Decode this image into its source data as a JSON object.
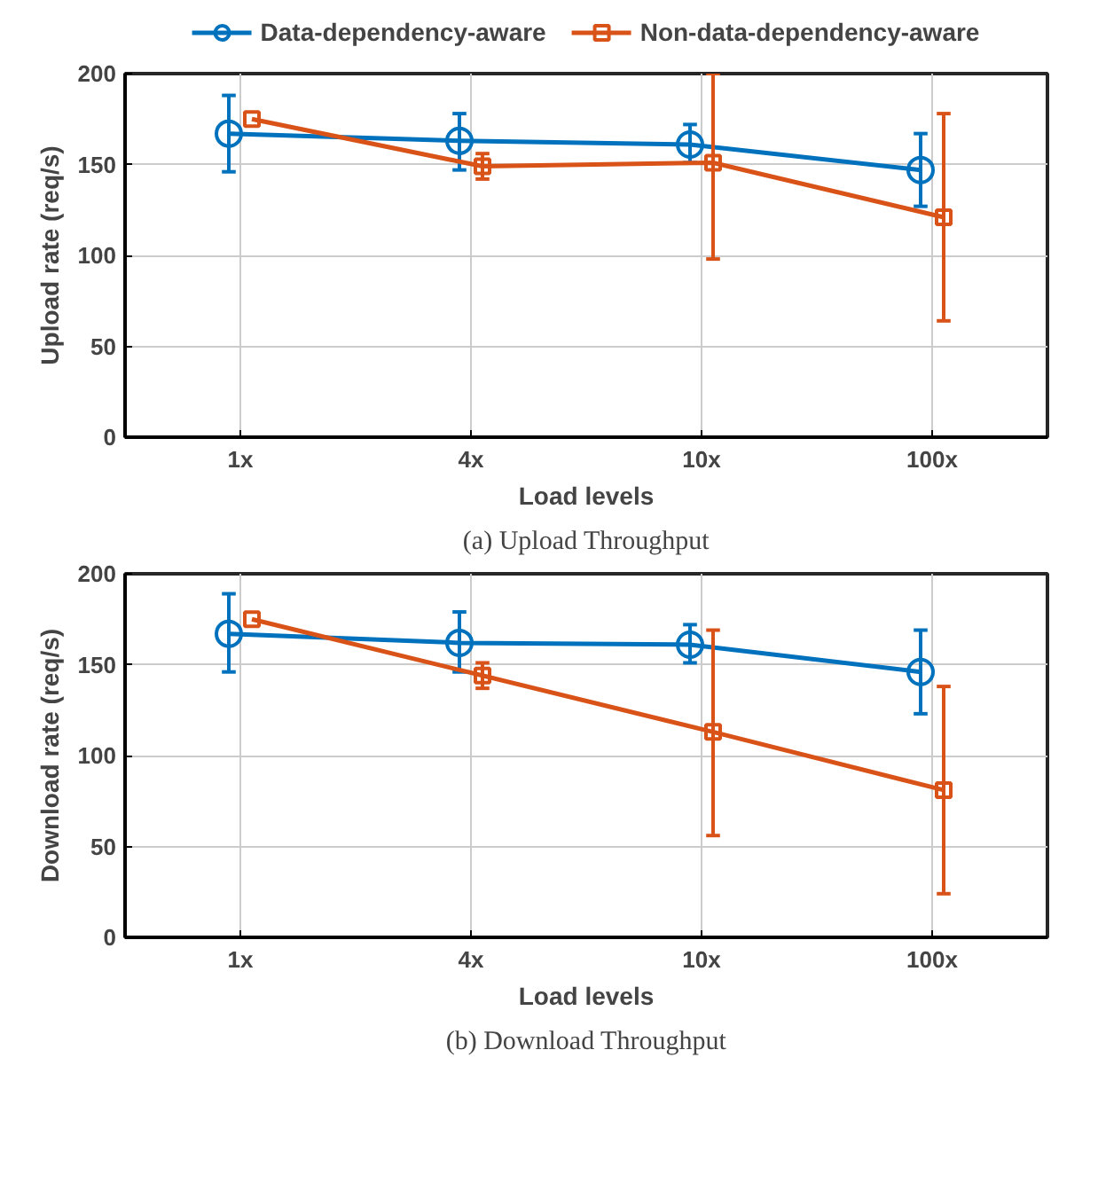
{
  "chart_data": [
    {
      "type": "line",
      "categories": [
        "1x",
        "4x",
        "10x",
        "100x"
      ],
      "xlabel": "Load levels",
      "ylabel": "Upload rate (req/s)",
      "ylim": [
        0,
        200
      ],
      "yticks": [
        0,
        50,
        100,
        150,
        200
      ],
      "grid": true,
      "legend": "top",
      "annotations": [
        "(a) Upload Throughput"
      ],
      "series": [
        {
          "name": "Data-dependency-aware",
          "color": "#0072bd",
          "marker": "circle",
          "values": [
            167,
            163,
            161,
            147
          ],
          "errors": [
            [
              146,
              188
            ],
            [
              147,
              178
            ],
            [
              151,
              172
            ],
            [
              127,
              167
            ]
          ]
        },
        {
          "name": "Non-data-dependency-aware",
          "color": "#d95319",
          "marker": "square",
          "values": [
            175,
            149,
            151,
            121
          ],
          "errors": [
            null,
            [
              142,
              156
            ],
            [
              98,
              200
            ],
            [
              64,
              178
            ]
          ]
        }
      ]
    },
    {
      "type": "line",
      "categories": [
        "1x",
        "4x",
        "10x",
        "100x"
      ],
      "xlabel": "Load levels",
      "ylabel": "Download rate (req/s)",
      "ylim": [
        0,
        200
      ],
      "yticks": [
        0,
        50,
        100,
        150,
        200
      ],
      "grid": true,
      "annotations": [
        "(b) Download Throughput"
      ],
      "series": [
        {
          "color": "#0072bd",
          "marker": "circle",
          "values": [
            167,
            162,
            161,
            146
          ],
          "errors": [
            [
              146,
              189
            ],
            [
              146,
              179
            ],
            [
              151,
              172
            ],
            [
              123,
              169
            ]
          ]
        },
        {
          "color": "#d95319",
          "marker": "square",
          "values": [
            175,
            144,
            113,
            81
          ],
          "errors": [
            null,
            [
              137,
              151
            ],
            [
              56,
              169
            ],
            [
              24,
              138
            ]
          ]
        }
      ]
    }
  ]
}
